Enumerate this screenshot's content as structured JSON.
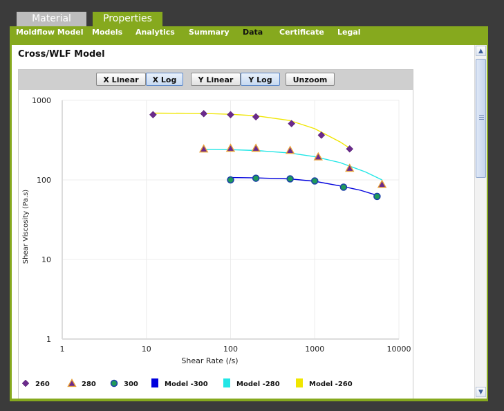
{
  "tabs": [
    {
      "label": "Material",
      "active": false
    },
    {
      "label": "Properties",
      "active": true
    }
  ],
  "nav": {
    "items": [
      "Moldflow Model",
      "Models",
      "Analytics",
      "Summary",
      "Data",
      "Certificate",
      "Legal"
    ],
    "active": "Data"
  },
  "page": {
    "title": "Cross/WLF Model"
  },
  "toolbar": {
    "buttons": [
      {
        "label": "X Linear",
        "pressed": false
      },
      {
        "label": "X Log",
        "pressed": true
      },
      {
        "label": "Y Linear",
        "pressed": false
      },
      {
        "label": "Y Log",
        "pressed": true
      },
      {
        "label": "Unzoom",
        "pressed": false
      }
    ]
  },
  "colors": {
    "brand_green": "#86a91e",
    "marker_fill": "#6b2a8c",
    "marker_280": "#6b2a8c",
    "marker_280_edge": "#e8a13a",
    "marker_300": "#1f9a5a",
    "marker_300_edge": "#1a3fa8",
    "model_300": "#0000dd",
    "model_280": "#22e6e6",
    "model_260": "#f0e600"
  },
  "chart_data": {
    "type": "scatter",
    "xlabel": "Shear Rate (/s)",
    "ylabel": "Shear Viscosity (Pa.s)",
    "xscale": "log",
    "yscale": "log",
    "xlim": [
      1,
      10000
    ],
    "ylim": [
      1,
      1000
    ],
    "xticks": [
      "1",
      "10",
      "100",
      "1000",
      "10000"
    ],
    "yticks": [
      "1",
      "10",
      "100",
      "1000"
    ],
    "grid": true,
    "legend_position": "bottom",
    "series": [
      {
        "name": "260",
        "kind": "points",
        "marker": "diamond",
        "x": [
          12,
          48,
          100,
          200,
          530,
          1200,
          2600
        ],
        "y": [
          660,
          680,
          660,
          620,
          510,
          365,
          245
        ]
      },
      {
        "name": "280",
        "kind": "points",
        "marker": "triangle",
        "x": [
          48,
          100,
          200,
          510,
          1100,
          2600,
          6300
        ],
        "y": [
          245,
          250,
          250,
          235,
          195,
          140,
          88
        ]
      },
      {
        "name": "300",
        "kind": "points",
        "marker": "circle",
        "x": [
          100,
          200,
          510,
          1000,
          2200,
          5500
        ],
        "y": [
          100,
          105,
          103,
          97,
          81,
          62
        ]
      },
      {
        "name": "Model -300",
        "kind": "line",
        "color": "#0000dd",
        "x": [
          100,
          200,
          500,
          1000,
          2000,
          3500,
          5500
        ],
        "y": [
          107,
          106,
          103,
          96,
          84,
          74,
          64
        ]
      },
      {
        "name": "Model -280",
        "kind": "line",
        "color": "#22e6e6",
        "x": [
          48,
          100,
          200,
          500,
          1000,
          2000,
          4000,
          6300
        ],
        "y": [
          242,
          240,
          234,
          218,
          196,
          165,
          126,
          100
        ]
      },
      {
        "name": "Model -260",
        "kind": "line",
        "color": "#f0e600",
        "x": [
          12,
          30,
          60,
          100,
          200,
          500,
          1000,
          2000,
          2600
        ],
        "y": [
          690,
          688,
          680,
          668,
          640,
          560,
          440,
          300,
          250
        ]
      }
    ]
  }
}
